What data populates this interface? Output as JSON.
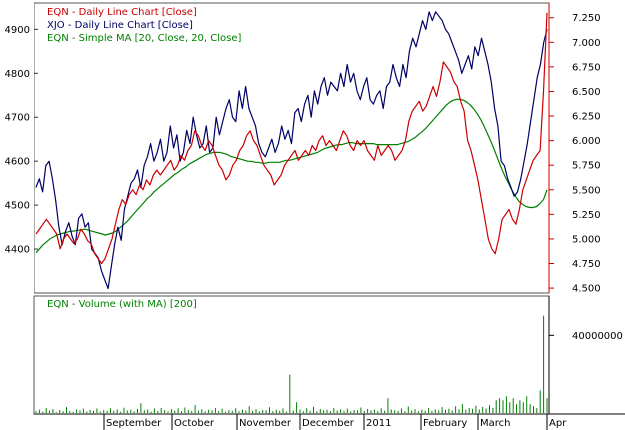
{
  "chart_data": [
    {
      "type": "line",
      "title": "",
      "legend": [
        {
          "key": "eqn",
          "label": "EQN - Daily Line Chart [Close]",
          "color": "#cc0000"
        },
        {
          "key": "xjo",
          "label": "XJO - Daily Line Chart [Close]",
          "color": "#000066"
        },
        {
          "key": "ma",
          "label": "EQN - Simple MA [20, Close, 20, Close]",
          "color": "#008000"
        }
      ],
      "legend_placement": "top-left",
      "grid": false,
      "x_labels": [
        "September",
        "October",
        "November",
        "December",
        "2011",
        "February",
        "March",
        "Apr"
      ],
      "left_axis": {
        "ticks": [
          "4400",
          "4500",
          "4600",
          "4700",
          "4800",
          "4900"
        ],
        "ylim": [
          4300,
          4960
        ]
      },
      "right_axis": {
        "ticks": [
          "4.500",
          "4.750",
          "5.000",
          "5.250",
          "5.500",
          "5.750",
          "6.000",
          "6.250",
          "6.500",
          "6.750",
          "7.000",
          "7.250"
        ],
        "ylim": [
          4.45,
          7.4
        ]
      },
      "series": [
        {
          "name": "XJO - Daily Line Chart [Close]",
          "axis": "left",
          "color": "#000066",
          "values": [
            4540,
            4560,
            4530,
            4590,
            4600,
            4560,
            4510,
            4450,
            4410,
            4440,
            4460,
            4430,
            4410,
            4470,
            4480,
            4450,
            4460,
            4400,
            4390,
            4380,
            4350,
            4330,
            4310,
            4360,
            4410,
            4450,
            4420,
            4490,
            4520,
            4550,
            4560,
            4580,
            4540,
            4590,
            4610,
            4640,
            4600,
            4620,
            4650,
            4600,
            4620,
            4680,
            4630,
            4660,
            4600,
            4620,
            4670,
            4640,
            4700,
            4660,
            4630,
            4640,
            4680,
            4620,
            4630,
            4700,
            4660,
            4690,
            4720,
            4740,
            4700,
            4690,
            4760,
            4720,
            4770,
            4720,
            4700,
            4680,
            4640,
            4620,
            4610,
            4630,
            4650,
            4620,
            4640,
            4680,
            4650,
            4670,
            4640,
            4710,
            4720,
            4690,
            4730,
            4750,
            4700,
            4760,
            4730,
            4770,
            4790,
            4750,
            4780,
            4770,
            4760,
            4800,
            4770,
            4820,
            4780,
            4800,
            4760,
            4740,
            4770,
            4790,
            4740,
            4730,
            4750,
            4760,
            4720,
            4770,
            4780,
            4820,
            4790,
            4770,
            4820,
            4790,
            4850,
            4880,
            4860,
            4890,
            4920,
            4900,
            4940,
            4920,
            4940,
            4930,
            4920,
            4900,
            4890,
            4870,
            4850,
            4830,
            4800,
            4820,
            4840,
            4810,
            4860,
            4840,
            4880,
            4850,
            4820,
            4780,
            4720,
            4680,
            4600,
            4590,
            4560,
            4540,
            4520,
            4530,
            4560,
            4600,
            4640,
            4690,
            4740,
            4790,
            4820,
            4870,
            4900
          ]
        },
        {
          "name": "EQN - Daily Line Chart [Close]",
          "axis": "right",
          "color": "#cc0000",
          "values": [
            5.05,
            5.1,
            5.15,
            5.2,
            5.15,
            5.1,
            5.05,
            4.9,
            5.0,
            5.05,
            5.0,
            4.95,
            5.0,
            5.1,
            5.05,
            4.98,
            4.95,
            4.85,
            4.8,
            4.75,
            4.8,
            4.9,
            5.0,
            5.15,
            5.3,
            5.4,
            5.35,
            5.45,
            5.5,
            5.45,
            5.55,
            5.5,
            5.6,
            5.55,
            5.65,
            5.7,
            5.65,
            5.7,
            5.75,
            5.8,
            5.7,
            5.75,
            5.85,
            5.8,
            5.9,
            5.95,
            6.1,
            6.05,
            5.95,
            5.9,
            6.0,
            5.95,
            5.85,
            5.75,
            5.7,
            5.6,
            5.65,
            5.75,
            5.8,
            5.9,
            5.95,
            6.05,
            6.1,
            6.0,
            5.95,
            5.85,
            5.75,
            5.7,
            5.65,
            5.55,
            5.6,
            5.65,
            5.75,
            5.8,
            5.85,
            5.9,
            5.8,
            5.85,
            5.9,
            5.85,
            5.95,
            5.9,
            6.0,
            6.05,
            5.95,
            6.0,
            5.95,
            5.9,
            6.0,
            6.1,
            6.05,
            5.95,
            5.9,
            6.0,
            5.95,
            6.0,
            5.9,
            5.85,
            5.8,
            5.95,
            5.85,
            5.9,
            5.95,
            5.9,
            5.8,
            5.85,
            5.9,
            6.0,
            6.2,
            6.3,
            6.35,
            6.4,
            6.3,
            6.35,
            6.45,
            6.55,
            6.45,
            6.6,
            6.8,
            6.75,
            6.7,
            6.6,
            6.55,
            6.4,
            6.3,
            6.0,
            5.9,
            5.75,
            5.6,
            5.4,
            5.2,
            5.0,
            4.9,
            4.85,
            5.0,
            5.2,
            5.25,
            5.3,
            5.2,
            5.15,
            5.3,
            5.5,
            5.6,
            5.7,
            5.8,
            5.85,
            5.9,
            6.5,
            7.3
          ]
        },
        {
          "name": "EQN - Simple MA [20, Close, 20, Close]",
          "axis": "right",
          "color": "#008000",
          "values": [
            4.86,
            4.9,
            4.94,
            4.97,
            5.0,
            5.02,
            5.04,
            5.05,
            5.06,
            5.07,
            5.08,
            5.08,
            5.09,
            5.09,
            5.1,
            5.09,
            5.08,
            5.07,
            5.06,
            5.05,
            5.04,
            5.05,
            5.06,
            5.08,
            5.11,
            5.14,
            5.17,
            5.21,
            5.25,
            5.29,
            5.33,
            5.37,
            5.41,
            5.44,
            5.48,
            5.51,
            5.54,
            5.57,
            5.6,
            5.63,
            5.66,
            5.68,
            5.71,
            5.73,
            5.76,
            5.78,
            5.8,
            5.82,
            5.84,
            5.86,
            5.87,
            5.88,
            5.88,
            5.88,
            5.87,
            5.86,
            5.84,
            5.83,
            5.82,
            5.81,
            5.8,
            5.79,
            5.79,
            5.78,
            5.78,
            5.77,
            5.77,
            5.78,
            5.78,
            5.78,
            5.78,
            5.79,
            5.8,
            5.8,
            5.81,
            5.82,
            5.83,
            5.84,
            5.85,
            5.86,
            5.87,
            5.88,
            5.9,
            5.92,
            5.93,
            5.94,
            5.95,
            5.96,
            5.96,
            5.97,
            5.98,
            5.98,
            5.97,
            5.97,
            5.97,
            5.97,
            5.97,
            5.97,
            5.96,
            5.96,
            5.96,
            5.96,
            5.96,
            5.96,
            5.96,
            5.97,
            5.98,
            5.99,
            6.01,
            6.03,
            6.06,
            6.09,
            6.12,
            6.16,
            6.2,
            6.24,
            6.28,
            6.32,
            6.36,
            6.39,
            6.41,
            6.42,
            6.42,
            6.41,
            6.39,
            6.36,
            6.32,
            6.27,
            6.21,
            6.14,
            6.06,
            5.98,
            5.89,
            5.8,
            5.71,
            5.63,
            5.56,
            5.49,
            5.43,
            5.38,
            5.35,
            5.33,
            5.32,
            5.32,
            5.33,
            5.36,
            5.4,
            5.5
          ]
        }
      ]
    },
    {
      "type": "bar",
      "title": "",
      "legend": [
        {
          "key": "vol",
          "label": "EQN - Volume (with MA) [200]",
          "color": "#008000"
        }
      ],
      "ylim": [
        0,
        60000000
      ],
      "y_ticks": [
        "40000000"
      ],
      "series": [
        {
          "name": "EQN - Volume (with MA) [200]",
          "color": "#008000",
          "values": [
            1500000,
            2200000,
            1200000,
            3000000,
            1800000,
            2500000,
            900000,
            2000000,
            1400000,
            3500000,
            1600000,
            1100000,
            2300000,
            1900000,
            2700000,
            1300000,
            2100000,
            1600000,
            2800000,
            1200000,
            2000000,
            1500000,
            2900000,
            1700000,
            2400000,
            1100000,
            3200000,
            1800000,
            2200000,
            1400000,
            2600000,
            5500000,
            1900000,
            2300000,
            1200000,
            2800000,
            1500000,
            3100000,
            2000000,
            1300000,
            2500000,
            1700000,
            2900000,
            1400000,
            3300000,
            2100000,
            1600000,
            4500000,
            1800000,
            2400000,
            1300000,
            2200000,
            1900000,
            3000000,
            1500000,
            2700000,
            1200000,
            2000000,
            1700000,
            2900000,
            1400000,
            2300000,
            1800000,
            4000000,
            1600000,
            2500000,
            1300000,
            2100000,
            1900000,
            3400000,
            1500000,
            2200000,
            1700000,
            2800000,
            1200000,
            20000000,
            1800000,
            6000000,
            2300000,
            1400000,
            2900000,
            1700000,
            3600000,
            1300000,
            2500000,
            1900000,
            2200000,
            1500000,
            3000000,
            1800000,
            2400000,
            1600000,
            2700000,
            1300000,
            2100000,
            1900000,
            3300000,
            1500000,
            2600000,
            1800000,
            2200000,
            1400000,
            2900000,
            1700000,
            8000000,
            2300000,
            1900000,
            1600000,
            2800000,
            1400000,
            3800000,
            1800000,
            2500000,
            1500000,
            2200000,
            1700000,
            3000000,
            1600000,
            2400000,
            1900000,
            3500000,
            2100000,
            2700000,
            1800000,
            3900000,
            2400000,
            5000000,
            2200000,
            3100000,
            2600000,
            4200000,
            2300000,
            3600000,
            2800000,
            4500000,
            3100000,
            7000000,
            8000000,
            7000000,
            9000000,
            6000000,
            8000000,
            5000000,
            7000000,
            6000000,
            9000000,
            5000000,
            4000000,
            3000000,
            12000000,
            50000000,
            8000000
          ]
        }
      ]
    }
  ]
}
